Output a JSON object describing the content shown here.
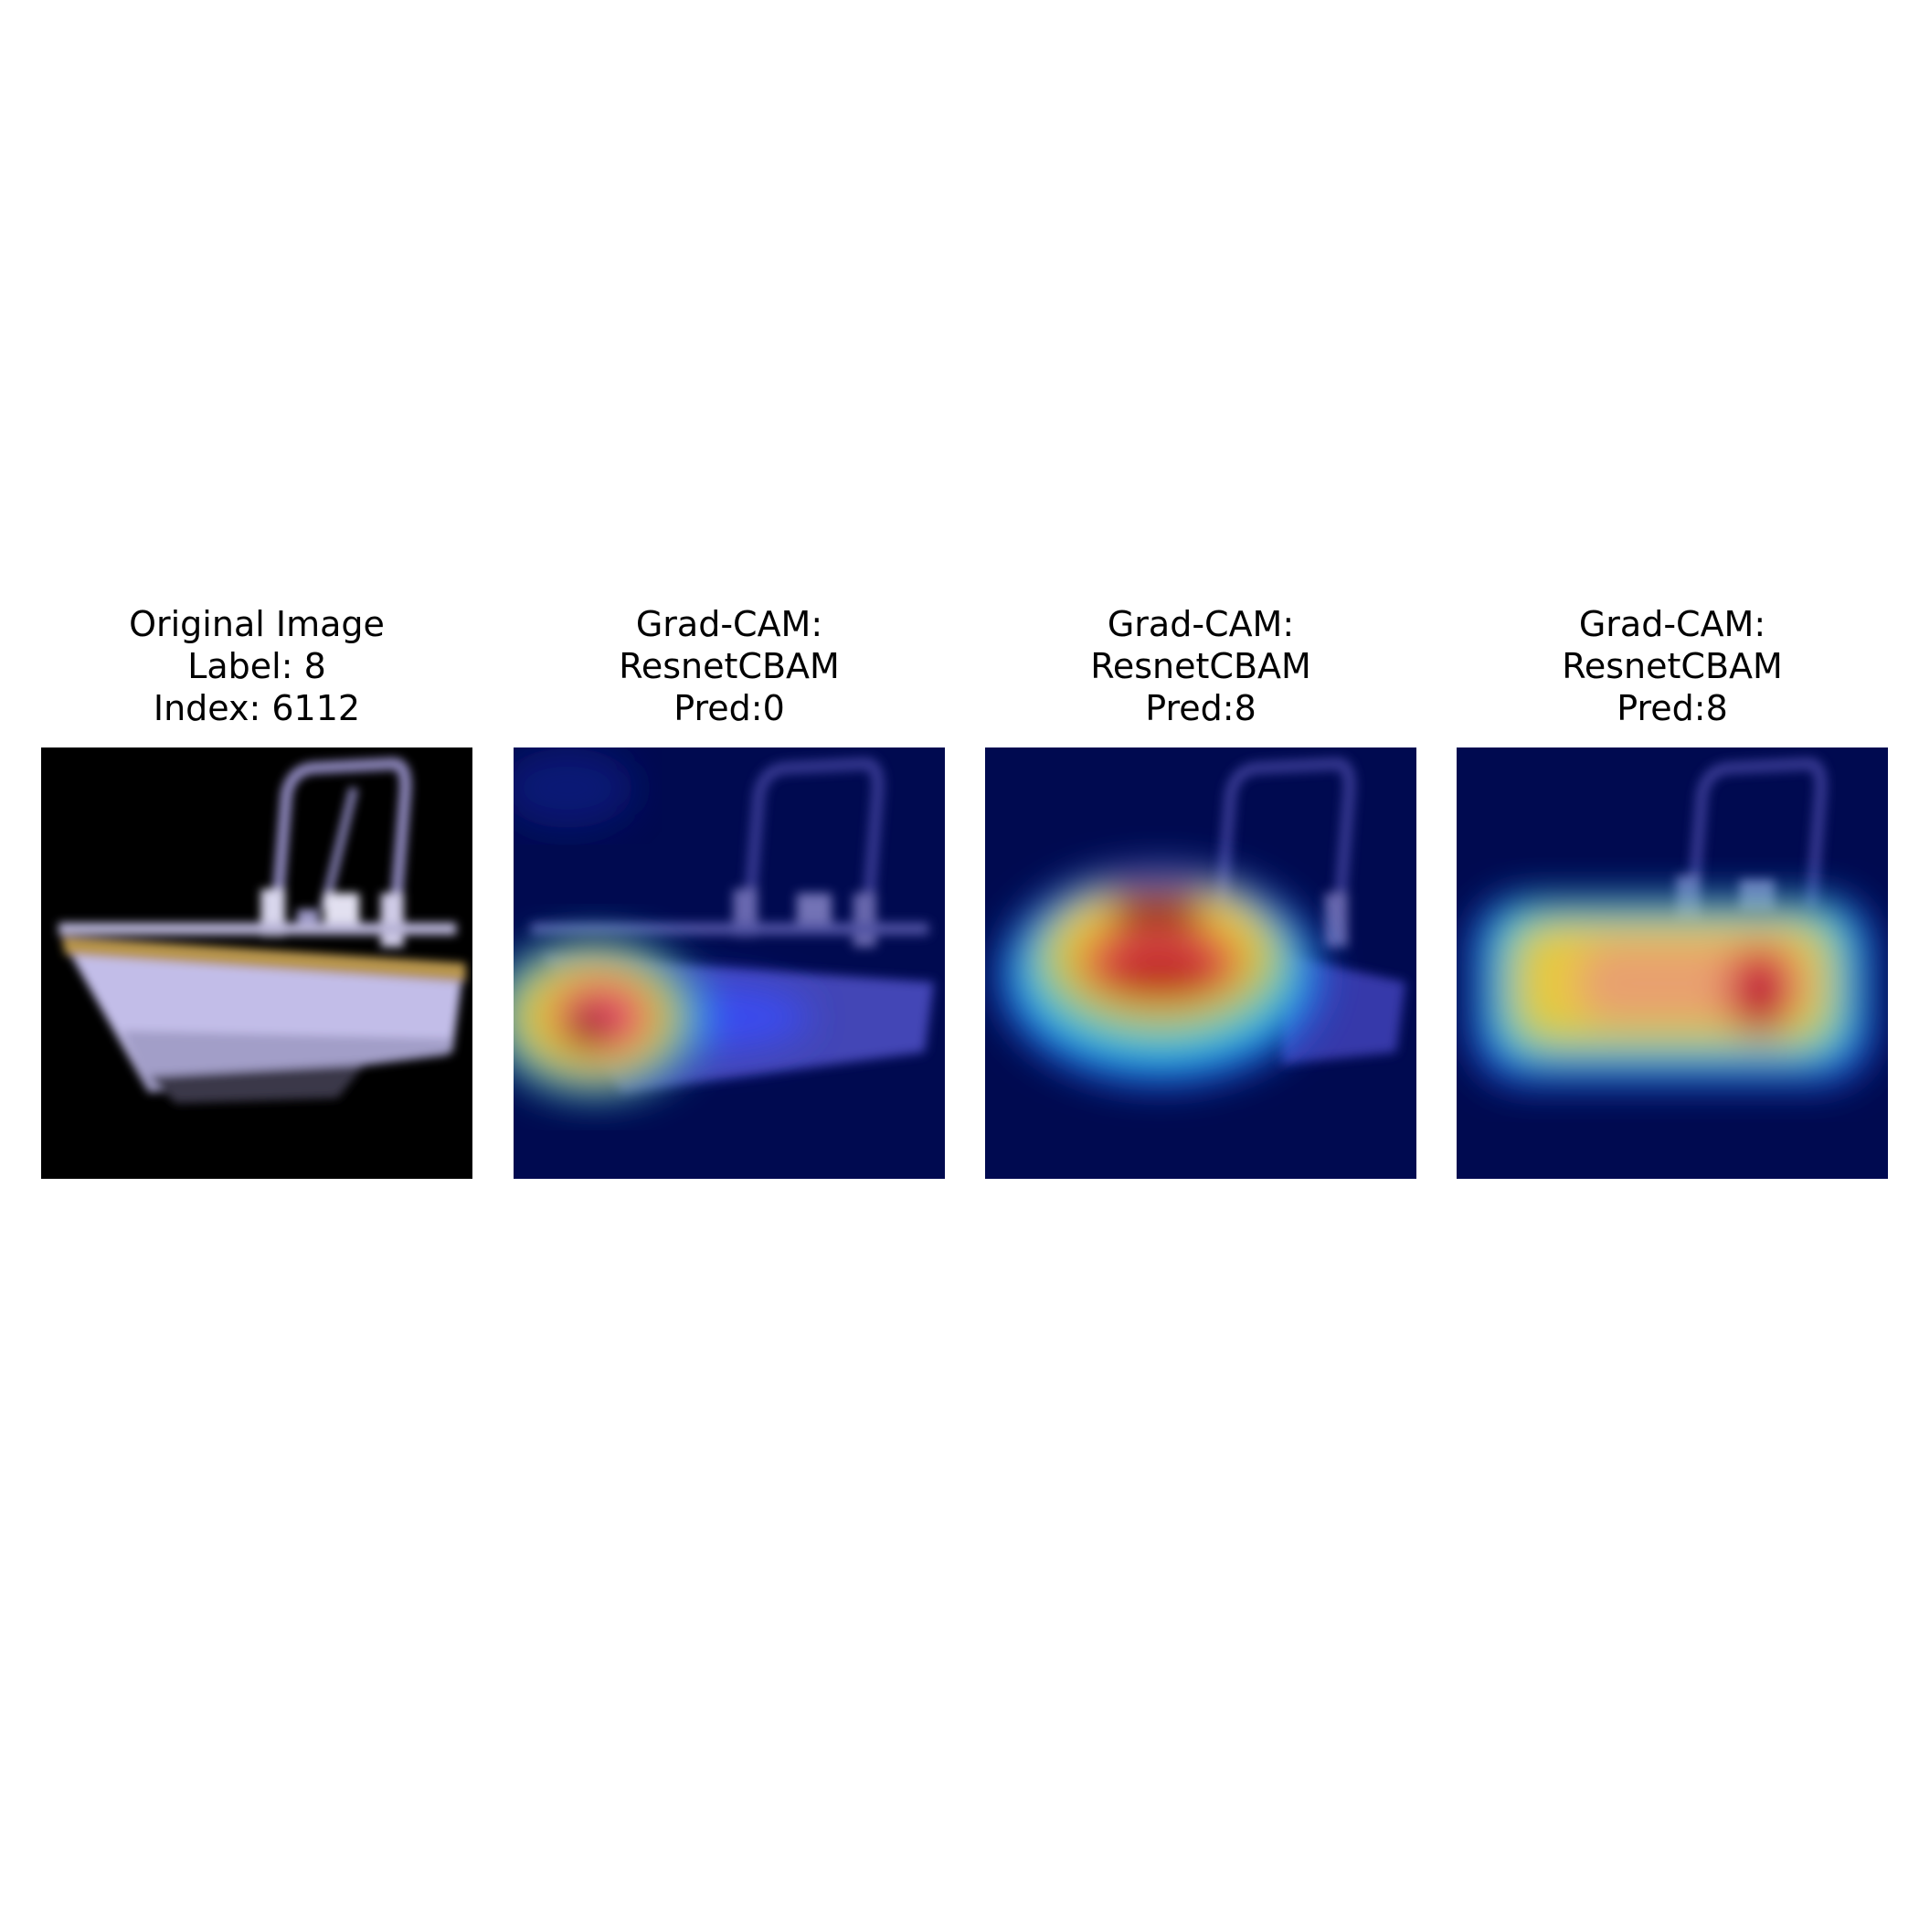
{
  "figure": {
    "panels": [
      {
        "kind": "original",
        "title_lines": [
          "Original Image",
          "Label: 8",
          "Index: 6112"
        ],
        "image": "original-boat-image"
      },
      {
        "kind": "gradcam",
        "title_lines": [
          "Grad-CAM:",
          "ResnetCBAM",
          "Pred:0"
        ],
        "image": "gradcam-heatmap-overlay",
        "hotspot": "lower-left bow"
      },
      {
        "kind": "gradcam",
        "title_lines": [
          "Grad-CAM:",
          "ResnetCBAM",
          "Pred:8"
        ],
        "image": "gradcam-heatmap-overlay",
        "hotspot": "cabin center"
      },
      {
        "kind": "gradcam",
        "title_lines": [
          "Grad-CAM:",
          "ResnetCBAM",
          "Pred:8"
        ],
        "image": "gradcam-heatmap-overlay",
        "hotspot": "hull right"
      }
    ],
    "colors": {
      "background": "#ffffff",
      "original_bg": "#000000",
      "heatmap_base": "#000a50",
      "boat_hull": "#c2bde8",
      "boat_trim": "#b8954e"
    }
  }
}
